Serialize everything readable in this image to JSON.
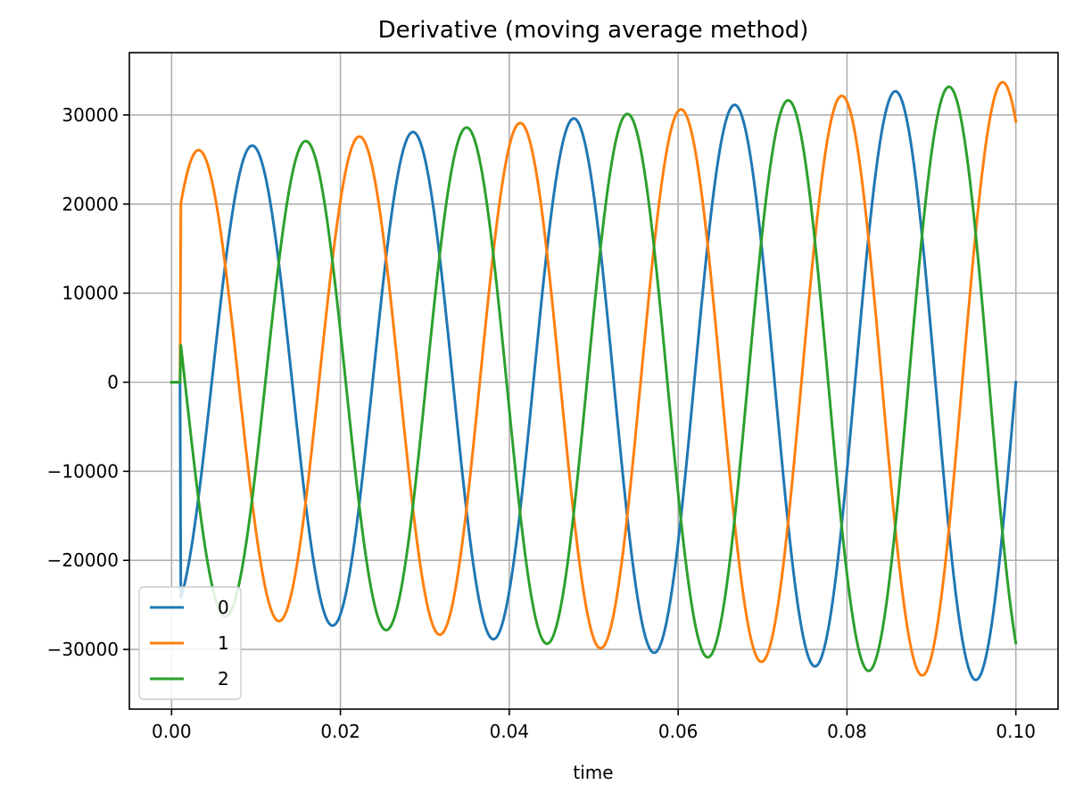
{
  "chart_data": {
    "type": "line",
    "title": "Derivative (moving average method)",
    "xlabel": "time",
    "ylabel": "",
    "xlim": [
      -0.005,
      0.105
    ],
    "ylim": [
      -36700,
      37000
    ],
    "grid": true,
    "legend_position": "lower-left",
    "x_ticks": [
      0.0,
      0.02,
      0.04,
      0.06,
      0.08,
      0.1
    ],
    "x_tick_labels": [
      "0.00",
      "0.02",
      "0.04",
      "0.06",
      "0.08",
      "0.10"
    ],
    "y_ticks": [
      -30000,
      -20000,
      -10000,
      0,
      10000,
      20000,
      30000
    ],
    "y_tick_labels": [
      "−30000",
      "−20000",
      "−10000",
      "0",
      "10000",
      "20000",
      "30000"
    ],
    "x_range": [
      0.0,
      0.1
    ],
    "frequency_hz": 52.5,
    "amplitude_start": 25800,
    "amplitude_end": 33800,
    "startup_time": 0.0011,
    "startup_value": 0,
    "phase_offset_fraction": [
      -0.25,
      0.0833,
      -0.5833
    ],
    "series": [
      {
        "name": "0",
        "color": "#1f77b4"
      },
      {
        "name": "1",
        "color": "#ff7f0e"
      },
      {
        "name": "2",
        "color": "#2ca02c"
      }
    ]
  }
}
